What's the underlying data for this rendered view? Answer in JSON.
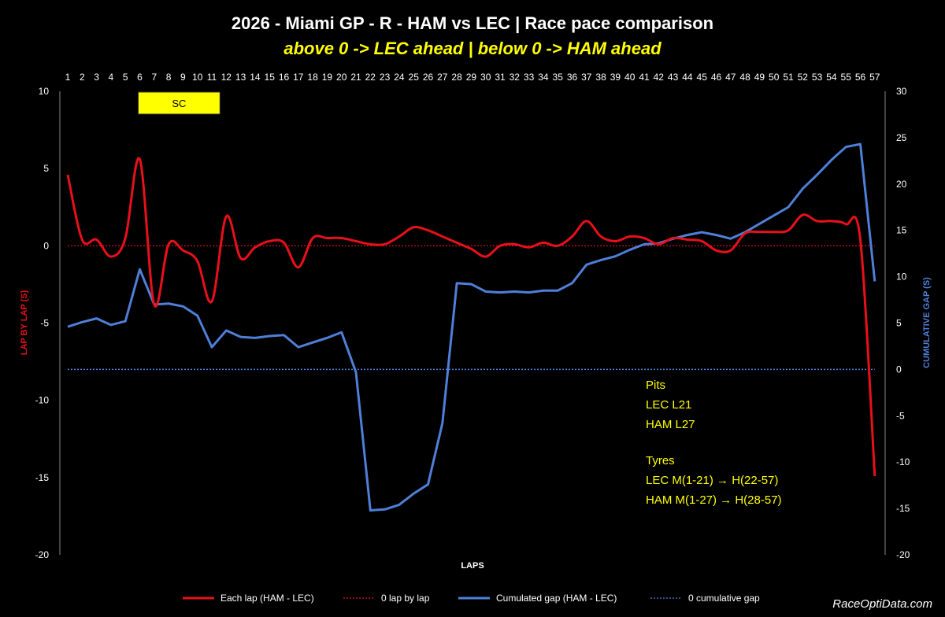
{
  "header": {
    "title": "2026 - Miami GP - R - HAM vs LEC | Race pace comparison",
    "subtitle": "above 0 -> LEC ahead | below 0 -> HAM ahead"
  },
  "chart_data": {
    "type": "line",
    "xlabel": "LAPS",
    "ylabel_left": "LAP BY LAP (S)",
    "ylabel_right": "CUMULATIVE GAP (S)",
    "x": [
      1,
      2,
      3,
      4,
      5,
      6,
      7,
      8,
      9,
      10,
      11,
      12,
      13,
      14,
      15,
      16,
      17,
      18,
      19,
      20,
      21,
      22,
      23,
      24,
      25,
      26,
      27,
      28,
      29,
      30,
      31,
      32,
      33,
      34,
      35,
      36,
      37,
      38,
      39,
      40,
      41,
      42,
      43,
      44,
      45,
      46,
      47,
      48,
      49,
      50,
      51,
      52,
      53,
      54,
      55,
      56,
      57
    ],
    "ylim_left": [
      -20,
      10
    ],
    "yticks_left": [
      10,
      5,
      0,
      -5,
      -10,
      -15,
      -20
    ],
    "ylim_right": [
      -20,
      30
    ],
    "yticks_right": [
      30,
      25,
      20,
      15,
      10,
      5,
      0,
      -5,
      -10,
      -15,
      -20
    ],
    "series": [
      {
        "name": "Each lap (HAM - LEC)",
        "axis": "left",
        "color": "#e8101a",
        "values": [
          4.6,
          0.4,
          0.4,
          -0.7,
          0.5,
          5.6,
          -3.8,
          0.1,
          -0.3,
          -1.0,
          -3.6,
          1.9,
          -0.8,
          -0.1,
          0.3,
          0.2,
          -1.4,
          0.5,
          0.5,
          0.5,
          0.3,
          0.1,
          0.1,
          0.6,
          1.2,
          1.0,
          0.6,
          0.2,
          -0.2,
          -0.7,
          0.0,
          0.1,
          -0.1,
          0.2,
          0.0,
          0.6,
          1.6,
          0.6,
          0.3,
          0.6,
          0.5,
          0.1,
          0.5,
          0.4,
          0.3,
          -0.3,
          -0.3,
          0.8,
          0.9,
          0.9,
          1.0,
          2.0,
          1.6,
          1.6,
          1.4,
          0.4,
          -14.9
        ]
      },
      {
        "name": "0 lap by lap",
        "axis": "left",
        "color": "#e8101a",
        "style": "dotted",
        "values_const": 0
      },
      {
        "name": "Cumulated gap (HAM - LEC)",
        "axis": "right",
        "color": "#4f7fd8",
        "values": [
          4.6,
          5.1,
          5.5,
          4.8,
          5.2,
          10.8,
          7.0,
          7.1,
          6.8,
          5.8,
          2.4,
          4.2,
          3.5,
          3.4,
          3.6,
          3.7,
          2.4,
          2.9,
          3.4,
          4.0,
          -0.3,
          -15.2,
          -15.1,
          -14.6,
          -13.4,
          -12.4,
          -5.8,
          9.3,
          9.2,
          8.4,
          8.3,
          8.4,
          8.3,
          8.5,
          8.5,
          9.3,
          11.3,
          11.8,
          12.2,
          12.9,
          13.5,
          13.6,
          14.1,
          14.5,
          14.8,
          14.5,
          14.1,
          14.8,
          15.7,
          16.6,
          17.5,
          19.5,
          21.0,
          22.6,
          24.0,
          24.3,
          9.5
        ]
      },
      {
        "name": "0 cumulative gap",
        "axis": "right",
        "color": "#4f7fd8",
        "style": "dotted",
        "values_const": 0
      }
    ],
    "sc_box": {
      "label": "SC",
      "from_lap": 6,
      "to_lap": 11,
      "color": "#ffff00"
    },
    "annotations": {
      "pits_title": "Pits",
      "pits_lec": "LEC L21",
      "pits_ham": "HAM  L27",
      "tyres_title": "Tyres",
      "tyres_lec": "LEC M(1-21) → H(22-57)",
      "tyres_ham": "HAM M(1-27) → H(28-57)"
    }
  },
  "footer": {
    "watermark": "RaceOptiData.com"
  }
}
